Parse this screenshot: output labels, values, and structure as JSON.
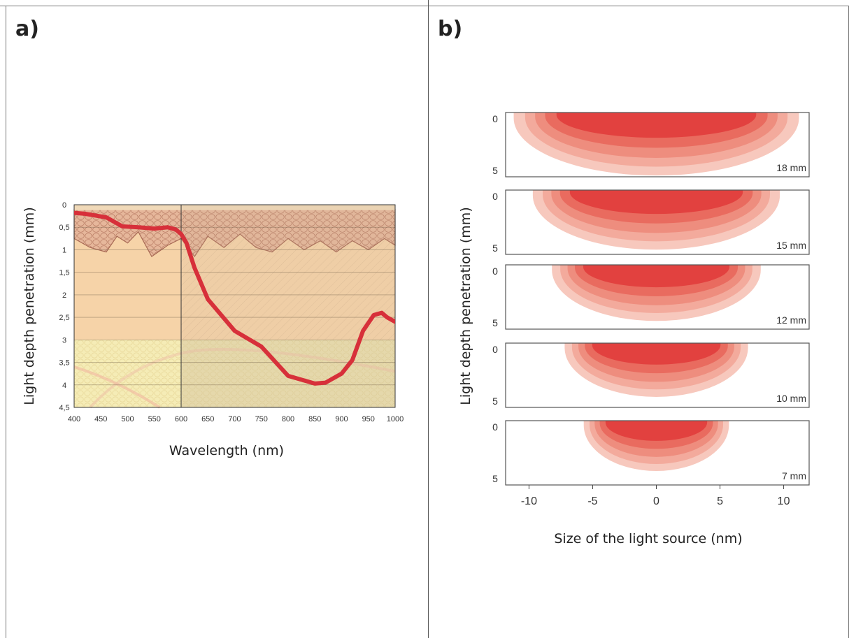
{
  "panel_a": {
    "letter": "a)",
    "colors": {
      "skin_bg": "#f6d3a8",
      "dermis": "#f5ecb6",
      "curve": "#d7303a"
    },
    "chart_data": {
      "type": "line",
      "xlabel": "Wavelength (nm)",
      "ylabel": "Light depth penetration (mm)",
      "xlim": [
        400,
        1000
      ],
      "ylim": [
        0,
        4.5
      ],
      "y_inverted": true,
      "x_ticks": [
        "400",
        "450",
        "500",
        "550",
        "600",
        "650",
        "700",
        "750",
        "800",
        "850",
        "900",
        "950",
        "1000"
      ],
      "y_ticks": [
        "0",
        "0,5",
        "1",
        "1,5",
        "2",
        "2,5",
        "3",
        "3,5",
        "4",
        "4,5"
      ],
      "series": [
        {
          "x": [
            400,
            420,
            460,
            490,
            520,
            550,
            575,
            590,
            600,
            610,
            625,
            650,
            700,
            750,
            800,
            850,
            870,
            900,
            920,
            940,
            960,
            975,
            985,
            1000
          ],
          "y": [
            0.18,
            0.2,
            0.28,
            0.48,
            0.5,
            0.53,
            0.5,
            0.55,
            0.65,
            0.85,
            1.4,
            2.1,
            2.8,
            3.15,
            3.8,
            3.97,
            3.95,
            3.75,
            3.45,
            2.8,
            2.45,
            2.4,
            2.5,
            2.6
          ]
        }
      ]
    }
  },
  "panel_b": {
    "letter": "b)",
    "colors": {
      "ring1": "#f7c8bd",
      "ring2": "#f3aa9c",
      "ring3": "#ee8d7e",
      "ring4": "#e96b5f",
      "core": "#e2413f"
    },
    "chart_data": {
      "type": "heatmap",
      "xlabel": "Size of the light source (nm)",
      "ylabel": "Light depth penetration (mm)",
      "xlim": [
        -12,
        12
      ],
      "x_ticks": [
        "-10",
        "-5",
        "0",
        "5",
        "10"
      ],
      "y_tick_top": "0",
      "y_tick_bottom": "5",
      "sources": [
        {
          "label": "18 mm",
          "size": 18
        },
        {
          "label": "15 mm",
          "size": 15
        },
        {
          "label": "12 mm",
          "size": 12
        },
        {
          "label": "10 mm",
          "size": 10
        },
        {
          "label": "7 mm",
          "size": 7
        }
      ]
    }
  }
}
